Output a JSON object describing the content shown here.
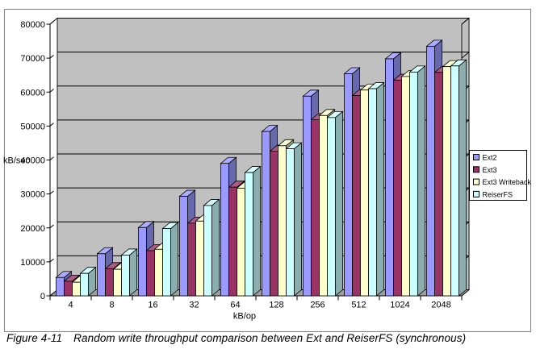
{
  "figure_caption": {
    "label": "Figure 4-11",
    "text": "Random write throughput comparison between Ext and ReiserFS (synchronous)"
  },
  "chart_data": {
    "type": "bar",
    "style": "excel-3d-clustered-column",
    "title": "",
    "xlabel": "kB/op",
    "ylabel": "kB/sec",
    "ylim": [
      0,
      80000
    ],
    "yticks": [
      0,
      10000,
      20000,
      30000,
      40000,
      50000,
      60000,
      70000,
      80000
    ],
    "grid": true,
    "legend_position": "right",
    "wall_color": "#C0C0C0",
    "floor_color": "#9E9E9E",
    "frame_border_color": "#808080",
    "categories": [
      "4",
      "8",
      "16",
      "32",
      "64",
      "128",
      "256",
      "512",
      "1024",
      "2048"
    ],
    "series": [
      {
        "name": "Ext2",
        "color": "#9999FF",
        "values": [
          5400,
          12400,
          20100,
          29300,
          39000,
          48400,
          58800,
          65400,
          69800,
          73500
        ]
      },
      {
        "name": "Ext3",
        "color": "#993366",
        "values": [
          4300,
          8000,
          13300,
          21400,
          32000,
          42600,
          51900,
          59000,
          63500,
          65800
        ]
      },
      {
        "name": "Ext3 Writeback",
        "color": "#FFFFCC",
        "values": [
          4000,
          7800,
          13700,
          22000,
          31700,
          44200,
          53100,
          60600,
          64600,
          67500
        ]
      },
      {
        "name": "ReiserFS",
        "color": "#CCFFFF",
        "values": [
          6600,
          12000,
          19800,
          26600,
          36300,
          43300,
          52500,
          61000,
          65900,
          67700
        ]
      }
    ]
  }
}
